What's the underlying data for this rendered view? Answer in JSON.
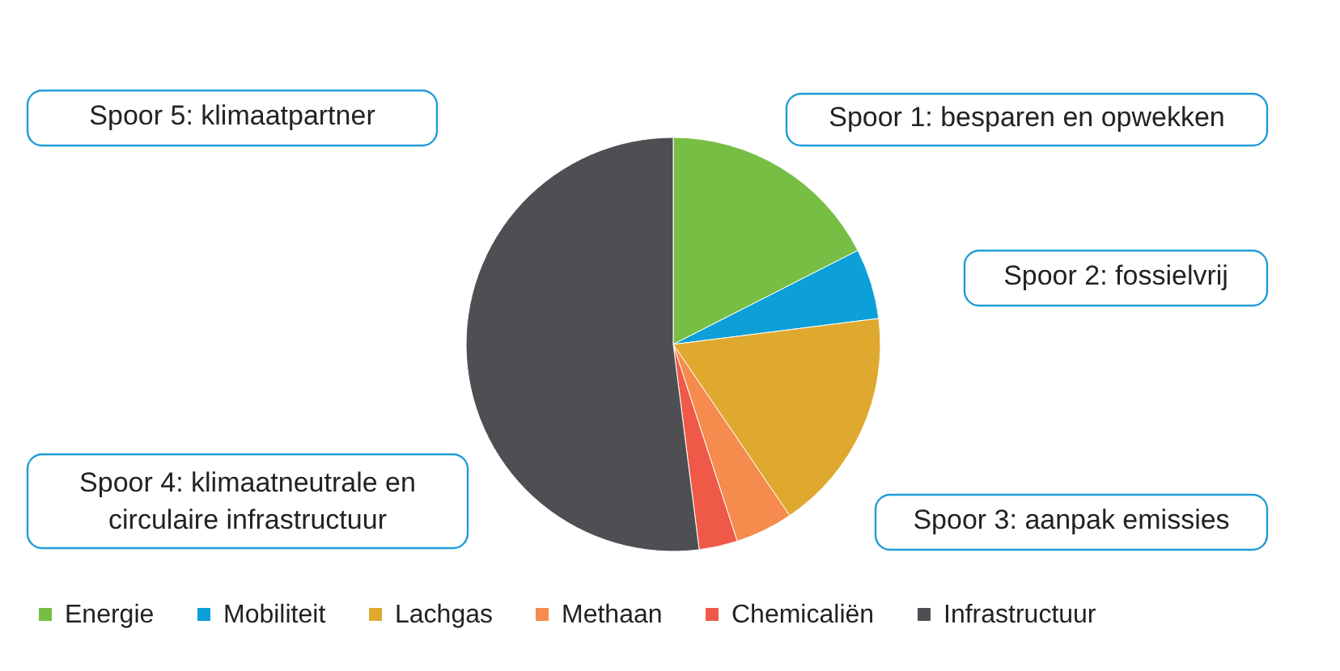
{
  "chart_data": {
    "type": "pie",
    "categories": [
      "Energie",
      "Mobiliteit",
      "Lachgas",
      "Methaan",
      "Chemicaliën",
      "Infrastructuur"
    ],
    "values": [
      17.5,
      5.5,
      17.5,
      4.5,
      3,
      52
    ],
    "colors": [
      "#77bf44",
      "#0c9fd8",
      "#dea92e",
      "#f58b4c",
      "#ee5a47",
      "#4d4f53"
    ],
    "legend": "bottom",
    "annotations": [
      "Spoor 1: besparen en opwekken",
      "Spoor 2: fossielvrij",
      "Spoor 3: aanpak emissies",
      "Spoor 4: klimaatneutrale en\ncirculaire infrastructuur",
      "Spoor 5: klimaatpartner"
    ]
  }
}
